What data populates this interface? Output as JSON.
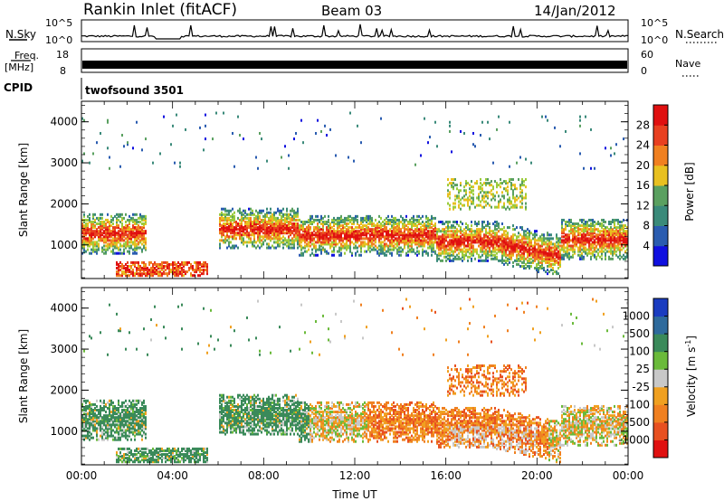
{
  "header": {
    "station": "Rankin Inlet (fitACF)",
    "beam": "Beam 03",
    "date": "14/Jan/2012"
  },
  "strips": {
    "nsky_label": "N.Sky",
    "nsky_ticks": [
      "10^5",
      "10^0"
    ],
    "nsearch_label": "N.Search",
    "nsearch_ticks": [
      "10^5",
      "10^0"
    ],
    "freq_label": "Freq.",
    "freq_unit": "[MHz]",
    "freq_ticks": [
      "18",
      "8"
    ],
    "nave_label": "Nave",
    "nave_ticks": [
      "60",
      "0"
    ],
    "cpid_label": "CPID",
    "cpid_value": "twofsound 3501"
  },
  "colors": {
    "power_scale": [
      "#1010e0",
      "#2a5cb0",
      "#3a8a7a",
      "#5aa060",
      "#9ccc3c",
      "#e8c020",
      "#f08020",
      "#e84020",
      "#e01010"
    ],
    "velocity_scale": [
      "#1a3cc0",
      "#2e6a9c",
      "#3a8a5a",
      "#6aba3a",
      "#c8c8c8",
      "#f0a020",
      "#f08020",
      "#e85020",
      "#e01010"
    ]
  },
  "chart_data": [
    {
      "type": "heatmap",
      "title": "Power",
      "ylabel": "Slant Range [km]",
      "colorbar_label": "Power [dB]",
      "colorbar_ticks": [
        "4",
        "8",
        "12",
        "16",
        "20",
        "24",
        "28"
      ],
      "x_ticks": [
        "00:00",
        "04:00",
        "08:00",
        "12:00",
        "16:00",
        "20:00",
        "00:00"
      ],
      "y_ticks": [
        "1000",
        "2000",
        "3000",
        "4000"
      ],
      "xlim_hours": [
        0,
        24
      ],
      "ylim_km": [
        180,
        4500
      ]
    },
    {
      "type": "heatmap",
      "title": "Velocity",
      "ylabel": "Slant Range [km]",
      "xlabel": "Time UT",
      "colorbar_label": "Velocity [m s",
      "colorbar_label_sup": "-1",
      "colorbar_label_end": "]",
      "colorbar_ticks": [
        "1000",
        "500",
        "100",
        "25",
        "-25",
        "-100",
        "-500",
        "-1000"
      ],
      "x_ticks": [
        "00:00",
        "04:00",
        "08:00",
        "12:00",
        "16:00",
        "20:00",
        "00:00"
      ],
      "y_ticks": [
        "1000",
        "2000",
        "3000",
        "4000"
      ],
      "xlim_hours": [
        0,
        24
      ],
      "ylim_km": [
        180,
        4500
      ]
    }
  ]
}
